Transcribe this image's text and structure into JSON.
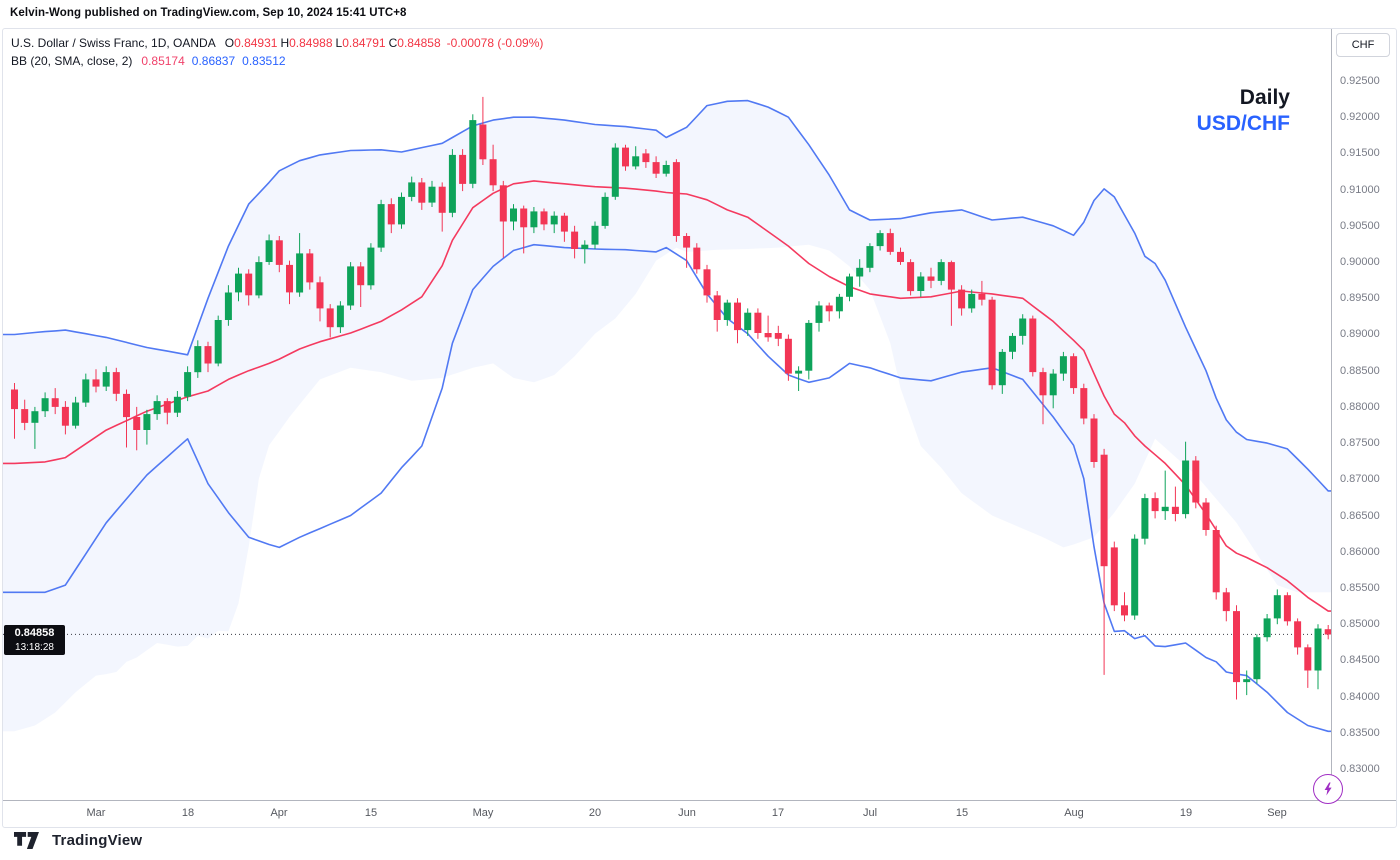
{
  "attribution": "Kelvin-Wong published on TradingView.com, Sep 10, 2024 15:41 UTC+8",
  "legend": {
    "title": "U.S. Dollar / Swiss Franc, 1D, OANDA",
    "ohlc": [
      {
        "k": "O",
        "v": "0.84931"
      },
      {
        "k": "H",
        "v": "0.84988"
      },
      {
        "k": "L",
        "v": "0.84791"
      },
      {
        "k": "C",
        "v": "0.84858"
      }
    ],
    "change": "-0.00078 (-0.09%)",
    "indicator_label": "BB (20, SMA, close, 2)",
    "indicator_values": [
      {
        "v": "0.85174",
        "color": "pink"
      },
      {
        "v": "0.86837",
        "color": "blue"
      },
      {
        "v": "0.83512",
        "color": "blue"
      }
    ]
  },
  "watermark": {
    "line1": "Daily",
    "line2": "USD/CHF"
  },
  "price_axis": {
    "currency_button": "CHF",
    "last_price": "0.84858",
    "countdown": "13:18:28"
  },
  "footer": {
    "brand": "TradingView"
  },
  "colors": {
    "up": "#0ea35a",
    "down": "#f23655",
    "band_line": "#5179f3",
    "band_fill": "rgba(81,121,243,0.07)",
    "basis_line": "#f43a5f",
    "axis_text": "#787b86",
    "label_bg": "#0c0d12",
    "accent_blue": "#2962ff",
    "legend_red": "#f23645",
    "flash_purple": "#a02ec4"
  },
  "chart_data": {
    "type": "candlestick",
    "symbol": "USD/CHF",
    "timeframe": "1D",
    "exchange": "OANDA",
    "indicator": "Bollinger Bands (20, SMA, close, 2)",
    "ylim": [
      0.8257,
      0.9257
    ],
    "grid": false,
    "last_bar": {
      "open": 0.84931,
      "high": 0.84988,
      "low": 0.84791,
      "close": 0.84858,
      "change": -0.00078,
      "change_pct": -0.09
    },
    "bollinger_last": {
      "basis": 0.85174,
      "upper": 0.86837,
      "lower": 0.83512
    },
    "price_ticks": [
      "0.92500",
      "0.92000",
      "0.91500",
      "0.91000",
      "0.90500",
      "0.90000",
      "0.89500",
      "0.89000",
      "0.88500",
      "0.88000",
      "0.87500",
      "0.87000",
      "0.86500",
      "0.86000",
      "0.85500",
      "0.85000",
      "0.84500",
      "0.84000",
      "0.83500",
      "0.83000"
    ],
    "price_tick_values": [
      0.925,
      0.92,
      0.915,
      0.91,
      0.905,
      0.9,
      0.895,
      0.89,
      0.885,
      0.88,
      0.875,
      0.87,
      0.865,
      0.86,
      0.855,
      0.85,
      0.845,
      0.84,
      0.835,
      0.83
    ],
    "time_ticks": [
      {
        "label": "Mar",
        "index": 8
      },
      {
        "label": "18",
        "index": 17
      },
      {
        "label": "Apr",
        "index": 26
      },
      {
        "label": "15",
        "index": 35
      },
      {
        "label": "May",
        "index": 46
      },
      {
        "label": "20",
        "index": 57
      },
      {
        "label": "Jun",
        "index": 66
      },
      {
        "label": "17",
        "index": 75
      },
      {
        "label": "Jul",
        "index": 84
      },
      {
        "label": "15",
        "index": 93
      },
      {
        "label": "Aug",
        "index": 104
      },
      {
        "label": "19",
        "index": 115
      },
      {
        "label": "Sep",
        "index": 124
      }
    ],
    "candles": [
      [
        0.8824,
        0.8833,
        0.8756,
        0.8797
      ],
      [
        0.8797,
        0.881,
        0.8768,
        0.8778
      ],
      [
        0.8778,
        0.88,
        0.8742,
        0.8794
      ],
      [
        0.8794,
        0.882,
        0.8786,
        0.8812
      ],
      [
        0.8812,
        0.8826,
        0.879,
        0.88
      ],
      [
        0.88,
        0.8808,
        0.8762,
        0.8774
      ],
      [
        0.8774,
        0.8814,
        0.877,
        0.8806
      ],
      [
        0.8806,
        0.8846,
        0.88,
        0.8838
      ],
      [
        0.8838,
        0.8852,
        0.882,
        0.8828
      ],
      [
        0.8828,
        0.8856,
        0.8822,
        0.8848
      ],
      [
        0.8848,
        0.8854,
        0.8808,
        0.8818
      ],
      [
        0.8818,
        0.8824,
        0.8744,
        0.8786
      ],
      [
        0.8786,
        0.88,
        0.874,
        0.8768
      ],
      [
        0.8768,
        0.8796,
        0.8748,
        0.879
      ],
      [
        0.879,
        0.8816,
        0.8782,
        0.8808
      ],
      [
        0.8808,
        0.8812,
        0.8776,
        0.8792
      ],
      [
        0.8792,
        0.8822,
        0.8786,
        0.8814
      ],
      [
        0.8814,
        0.8856,
        0.8808,
        0.8848
      ],
      [
        0.8848,
        0.8892,
        0.884,
        0.8884
      ],
      [
        0.8884,
        0.889,
        0.8848,
        0.886
      ],
      [
        0.886,
        0.8926,
        0.8856,
        0.892
      ],
      [
        0.892,
        0.8968,
        0.8912,
        0.8958
      ],
      [
        0.8958,
        0.8992,
        0.8946,
        0.8984
      ],
      [
        0.8984,
        0.899,
        0.894,
        0.8954
      ],
      [
        0.8954,
        0.9008,
        0.895,
        0.9
      ],
      [
        0.9,
        0.9038,
        0.8996,
        0.903
      ],
      [
        0.903,
        0.9036,
        0.8986,
        0.8996
      ],
      [
        0.8996,
        0.9002,
        0.8942,
        0.8958
      ],
      [
        0.8958,
        0.904,
        0.8952,
        0.9012
      ],
      [
        0.9012,
        0.9018,
        0.8962,
        0.8972
      ],
      [
        0.8972,
        0.898,
        0.8918,
        0.8936
      ],
      [
        0.8936,
        0.8942,
        0.8896,
        0.891
      ],
      [
        0.891,
        0.8946,
        0.8902,
        0.894
      ],
      [
        0.894,
        0.9,
        0.8934,
        0.8994
      ],
      [
        0.8994,
        0.9,
        0.8938,
        0.8968
      ],
      [
        0.8968,
        0.9026,
        0.8962,
        0.902
      ],
      [
        0.902,
        0.9086,
        0.9014,
        0.908
      ],
      [
        0.908,
        0.9088,
        0.904,
        0.9052
      ],
      [
        0.9052,
        0.9096,
        0.9046,
        0.909
      ],
      [
        0.909,
        0.9118,
        0.9084,
        0.911
      ],
      [
        0.911,
        0.9116,
        0.9072,
        0.9082
      ],
      [
        0.9082,
        0.9112,
        0.9076,
        0.9104
      ],
      [
        0.9104,
        0.911,
        0.9042,
        0.9068
      ],
      [
        0.9068,
        0.9156,
        0.9062,
        0.9148
      ],
      [
        0.9148,
        0.9156,
        0.9098,
        0.9108
      ],
      [
        0.9108,
        0.9204,
        0.9102,
        0.9196
      ],
      [
        0.919,
        0.9228,
        0.9134,
        0.9142
      ],
      [
        0.9142,
        0.9162,
        0.9098,
        0.9106
      ],
      [
        0.9106,
        0.9112,
        0.9006,
        0.9056
      ],
      [
        0.9056,
        0.908,
        0.9044,
        0.9074
      ],
      [
        0.9074,
        0.9078,
        0.9012,
        0.9048
      ],
      [
        0.9048,
        0.9076,
        0.904,
        0.907
      ],
      [
        0.907,
        0.9074,
        0.9044,
        0.9052
      ],
      [
        0.9052,
        0.907,
        0.904,
        0.9064
      ],
      [
        0.9064,
        0.9068,
        0.9028,
        0.9042
      ],
      [
        0.9042,
        0.905,
        0.9005,
        0.9018
      ],
      [
        0.9018,
        0.903,
        0.8998,
        0.9024
      ],
      [
        0.9024,
        0.9056,
        0.9018,
        0.905
      ],
      [
        0.905,
        0.9096,
        0.9046,
        0.909
      ],
      [
        0.909,
        0.9164,
        0.9086,
        0.9158
      ],
      [
        0.9158,
        0.9162,
        0.9126,
        0.9132
      ],
      [
        0.9132,
        0.916,
        0.9128,
        0.9146
      ],
      [
        0.915,
        0.9156,
        0.913,
        0.9138
      ],
      [
        0.9138,
        0.9146,
        0.9116,
        0.9122
      ],
      [
        0.9122,
        0.914,
        0.9118,
        0.9134
      ],
      [
        0.9138,
        0.9142,
        0.9028,
        0.9036
      ],
      [
        0.9036,
        0.904,
        0.8992,
        0.902
      ],
      [
        0.902,
        0.9026,
        0.8984,
        0.899
      ],
      [
        0.899,
        0.8996,
        0.8944,
        0.8954
      ],
      [
        0.8954,
        0.896,
        0.8904,
        0.892
      ],
      [
        0.892,
        0.8948,
        0.8912,
        0.8944
      ],
      [
        0.8944,
        0.895,
        0.8888,
        0.8906
      ],
      [
        0.8906,
        0.8936,
        0.8898,
        0.893
      ],
      [
        0.893,
        0.8936,
        0.8894,
        0.8902
      ],
      [
        0.8902,
        0.8926,
        0.889,
        0.8896
      ],
      [
        0.8902,
        0.8912,
        0.8884,
        0.8894
      ],
      [
        0.8894,
        0.89,
        0.8836,
        0.8846
      ],
      [
        0.8846,
        0.8856,
        0.8822,
        0.885
      ],
      [
        0.885,
        0.892,
        0.8838,
        0.8916
      ],
      [
        0.8916,
        0.8946,
        0.8904,
        0.894
      ],
      [
        0.894,
        0.8944,
        0.8918,
        0.8932
      ],
      [
        0.8932,
        0.8956,
        0.8922,
        0.8952
      ],
      [
        0.8952,
        0.8984,
        0.8946,
        0.898
      ],
      [
        0.898,
        0.9004,
        0.8966,
        0.8992
      ],
      [
        0.8992,
        0.9026,
        0.8986,
        0.9022
      ],
      [
        0.9022,
        0.9044,
        0.9016,
        0.904
      ],
      [
        0.904,
        0.9046,
        0.901,
        0.9014
      ],
      [
        0.9014,
        0.902,
        0.8996,
        0.9
      ],
      [
        0.9,
        0.9004,
        0.8954,
        0.896
      ],
      [
        0.896,
        0.8986,
        0.8952,
        0.898
      ],
      [
        0.898,
        0.8992,
        0.8964,
        0.8974
      ],
      [
        0.8974,
        0.9004,
        0.8968,
        0.9
      ],
      [
        0.9,
        0.9002,
        0.8912,
        0.8962
      ],
      [
        0.8962,
        0.8968,
        0.8926,
        0.8936
      ],
      [
        0.8936,
        0.8962,
        0.893,
        0.8956
      ],
      [
        0.8956,
        0.8974,
        0.894,
        0.8948
      ],
      [
        0.8948,
        0.8952,
        0.8824,
        0.883
      ],
      [
        0.883,
        0.888,
        0.8818,
        0.8876
      ],
      [
        0.8876,
        0.8902,
        0.8866,
        0.8898
      ],
      [
        0.8898,
        0.8928,
        0.8886,
        0.8922
      ],
      [
        0.8922,
        0.8926,
        0.8842,
        0.8848
      ],
      [
        0.8848,
        0.8854,
        0.8776,
        0.8816
      ],
      [
        0.8816,
        0.8852,
        0.8798,
        0.8846
      ],
      [
        0.8846,
        0.8876,
        0.8836,
        0.887
      ],
      [
        0.887,
        0.8874,
        0.8818,
        0.8826
      ],
      [
        0.8826,
        0.8832,
        0.8776,
        0.8784
      ],
      [
        0.8784,
        0.879,
        0.8716,
        0.8724
      ],
      [
        0.8734,
        0.8742,
        0.843,
        0.858
      ],
      [
        0.8606,
        0.8614,
        0.8518,
        0.8526
      ],
      [
        0.8526,
        0.8544,
        0.8504,
        0.8512
      ],
      [
        0.8512,
        0.8624,
        0.8506,
        0.8618
      ],
      [
        0.8618,
        0.868,
        0.861,
        0.8674
      ],
      [
        0.8674,
        0.8682,
        0.8646,
        0.8656
      ],
      [
        0.8656,
        0.8712,
        0.8644,
        0.8662
      ],
      [
        0.8662,
        0.869,
        0.8642,
        0.8652
      ],
      [
        0.8652,
        0.8752,
        0.8646,
        0.8726
      ],
      [
        0.8726,
        0.8732,
        0.866,
        0.8668
      ],
      [
        0.8668,
        0.8674,
        0.8622,
        0.863
      ],
      [
        0.863,
        0.8636,
        0.8534,
        0.8544
      ],
      [
        0.8544,
        0.855,
        0.8504,
        0.8518
      ],
      [
        0.8518,
        0.8526,
        0.8396,
        0.842
      ],
      [
        0.842,
        0.8436,
        0.8402,
        0.8424
      ],
      [
        0.8424,
        0.8486,
        0.8418,
        0.8482
      ],
      [
        0.8482,
        0.8514,
        0.8476,
        0.8508
      ],
      [
        0.8508,
        0.8548,
        0.85,
        0.854
      ],
      [
        0.854,
        0.8544,
        0.8498,
        0.8504
      ],
      [
        0.8504,
        0.8508,
        0.8458,
        0.8468
      ],
      [
        0.8468,
        0.8472,
        0.8412,
        0.8436
      ],
      [
        0.8436,
        0.85,
        0.841,
        0.8494
      ],
      [
        0.84931,
        0.84988,
        0.84791,
        0.84858
      ]
    ],
    "bollinger_samples": [
      [
        0,
        0.89,
        0.8722
      ],
      [
        3,
        0.8904,
        0.8724
      ],
      [
        5,
        0.8906,
        0.873
      ],
      [
        9,
        0.8896,
        0.8768
      ],
      [
        13,
        0.8882,
        0.8794
      ],
      [
        17,
        0.8872,
        0.8814
      ],
      [
        19,
        0.895,
        0.8822
      ],
      [
        21,
        0.9022,
        0.8838
      ],
      [
        23,
        0.908,
        0.885
      ],
      [
        25,
        0.911,
        0.886
      ],
      [
        26,
        0.9126,
        0.8866
      ],
      [
        28,
        0.914,
        0.888
      ],
      [
        30,
        0.9148,
        0.889
      ],
      [
        33,
        0.9154,
        0.8902
      ],
      [
        36,
        0.9155,
        0.8918
      ],
      [
        38,
        0.9152,
        0.8934
      ],
      [
        40,
        0.9158,
        0.8952
      ],
      [
        42,
        0.9164,
        0.8995
      ],
      [
        43,
        0.9172,
        0.903
      ],
      [
        45,
        0.9188,
        0.9075
      ],
      [
        47,
        0.9196,
        0.9095
      ],
      [
        49,
        0.92,
        0.9108
      ],
      [
        51,
        0.92,
        0.9112
      ],
      [
        54,
        0.9196,
        0.9108
      ],
      [
        57,
        0.919,
        0.9104
      ],
      [
        60,
        0.9187,
        0.9102
      ],
      [
        63,
        0.9182,
        0.9098
      ],
      [
        64,
        0.9172,
        0.9096
      ],
      [
        66,
        0.9186,
        0.9094
      ],
      [
        68,
        0.9216,
        0.9086
      ],
      [
        70,
        0.9222,
        0.9072
      ],
      [
        72,
        0.9223,
        0.9062
      ],
      [
        74,
        0.9214,
        0.9042
      ],
      [
        76,
        0.92,
        0.9022
      ],
      [
        78,
        0.9162,
        0.8998
      ],
      [
        80,
        0.912,
        0.898
      ],
      [
        82,
        0.9072,
        0.8966
      ],
      [
        84,
        0.9058,
        0.8956
      ],
      [
        87,
        0.906,
        0.895
      ],
      [
        90,
        0.9068,
        0.8952
      ],
      [
        93,
        0.9072,
        0.896
      ],
      [
        96,
        0.9058,
        0.8956
      ],
      [
        99,
        0.9062,
        0.895
      ],
      [
        102,
        0.905,
        0.8918
      ],
      [
        104,
        0.9037,
        0.8892
      ],
      [
        105,
        0.9055,
        0.8878
      ],
      [
        106,
        0.9085,
        0.8846
      ],
      [
        107,
        0.9101,
        0.8815
      ],
      [
        108,
        0.909,
        0.879
      ],
      [
        109,
        0.9065,
        0.8778
      ],
      [
        110,
        0.904,
        0.876
      ],
      [
        111,
        0.9008,
        0.8746
      ],
      [
        112,
        0.8998,
        0.8734
      ],
      [
        113,
        0.8975,
        0.8722
      ],
      [
        115,
        0.891,
        0.8692
      ],
      [
        116,
        0.888,
        0.8672
      ],
      [
        117,
        0.885,
        0.8652
      ],
      [
        118,
        0.8812,
        0.863
      ],
      [
        119,
        0.8782,
        0.8608
      ],
      [
        120,
        0.8765,
        0.8598
      ],
      [
        121,
        0.8755,
        0.8592
      ],
      [
        123,
        0.875,
        0.8578
      ],
      [
        125,
        0.8742,
        0.856
      ],
      [
        127,
        0.8714,
        0.8537
      ],
      [
        129,
        0.8684,
        0.8518
      ]
    ]
  }
}
